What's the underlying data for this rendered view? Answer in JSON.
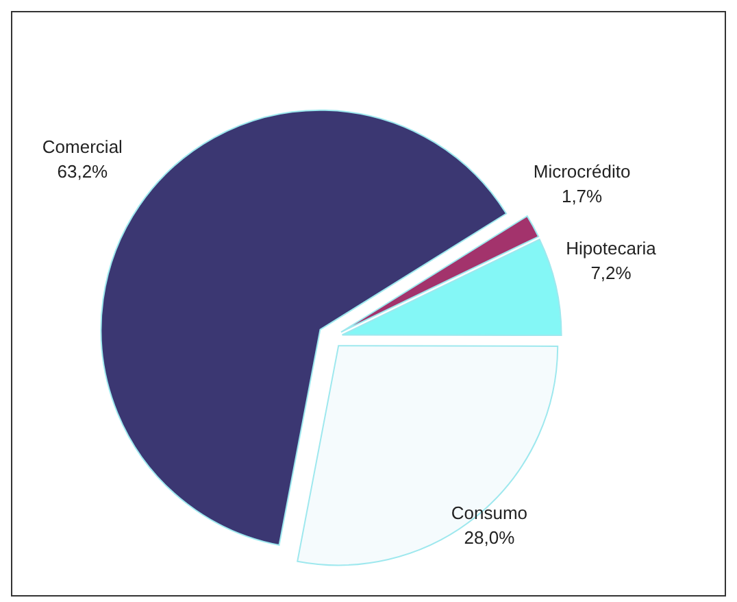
{
  "chart_data": {
    "type": "pie",
    "categories": [
      "Comercial",
      "Microcrédito",
      "Hipotecaria",
      "Consumo"
    ],
    "values": [
      63.2,
      1.7,
      7.2,
      28.0
    ],
    "value_labels": [
      "63,2%",
      "1,7%",
      "7,2%",
      "28,0%"
    ],
    "colors": [
      "#3b3772",
      "#a3336c",
      "#84f7f6",
      "#f5fbfd"
    ]
  }
}
